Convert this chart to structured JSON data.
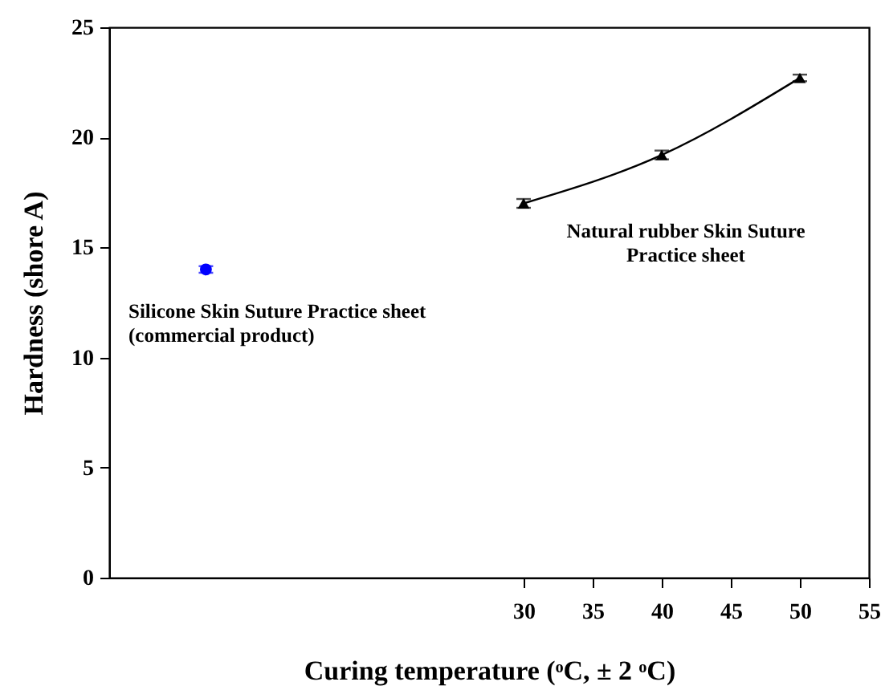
{
  "chart_data": {
    "type": "scatter",
    "xlabel": "Curing temperature (ᵒC, ± 2 ᵒC)",
    "ylabel": "Hardness (shore A)",
    "xlim": [
      0,
      55
    ],
    "xticks": [
      30,
      35,
      40,
      45,
      50,
      55
    ],
    "ylim": [
      0,
      25
    ],
    "yticks": [
      0,
      5,
      10,
      15,
      20,
      25
    ],
    "grid": false,
    "series": [
      {
        "marker": "circle",
        "color": "#0000ff",
        "x": [
          7
        ],
        "values": [
          14
        ],
        "errors": [
          0.15
        ]
      },
      {
        "type": "line",
        "marker": "triangle",
        "color": "#000000",
        "x": [
          30,
          40,
          50
        ],
        "values": [
          17.0,
          19.2,
          22.7
        ],
        "errors": [
          0.2,
          0.2,
          0.15
        ]
      }
    ],
    "annotations": [
      "Silicone Skin Suture Practice sheet\n(commercial product)",
      "Natural rubber Skin Suture\nPractice sheet"
    ]
  }
}
